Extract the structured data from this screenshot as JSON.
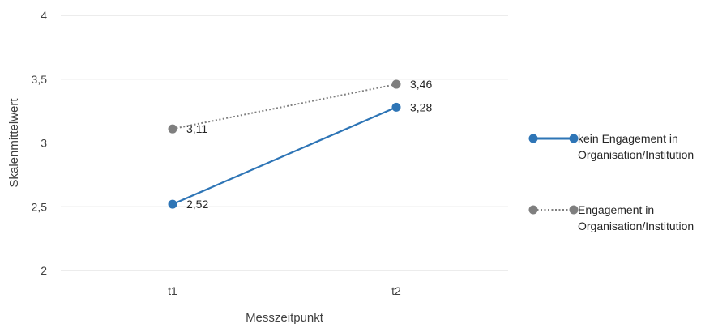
{
  "chart_data": {
    "type": "line",
    "title": "",
    "xlabel": "Messzeitpunkt",
    "ylabel": "Skalenmittelwert",
    "categories": [
      "t1",
      "t2"
    ],
    "ylim": [
      2,
      4
    ],
    "yticks": [
      2,
      2.5,
      3,
      3.5,
      4
    ],
    "yticks_labels": [
      "2",
      "2,5",
      "3",
      "3,5",
      "4"
    ],
    "grid": true,
    "legend_position": "right",
    "series": [
      {
        "name": "kein Engagement in Organisation/Institution",
        "legend_lines": [
          "kein Engagement in",
          "Organisation/Institution"
        ],
        "values": [
          2.52,
          3.28
        ],
        "labels": [
          "2,52",
          "3,28"
        ],
        "color": "#2E75B6",
        "style": "solid"
      },
      {
        "name": "Engagement in Organisation/Institution",
        "legend_lines": [
          "Engagement in",
          "Organisation/Institution"
        ],
        "values": [
          3.11,
          3.46
        ],
        "labels": [
          "3,11",
          "3,46"
        ],
        "color": "#7F7F7F",
        "style": "dotted"
      }
    ]
  }
}
